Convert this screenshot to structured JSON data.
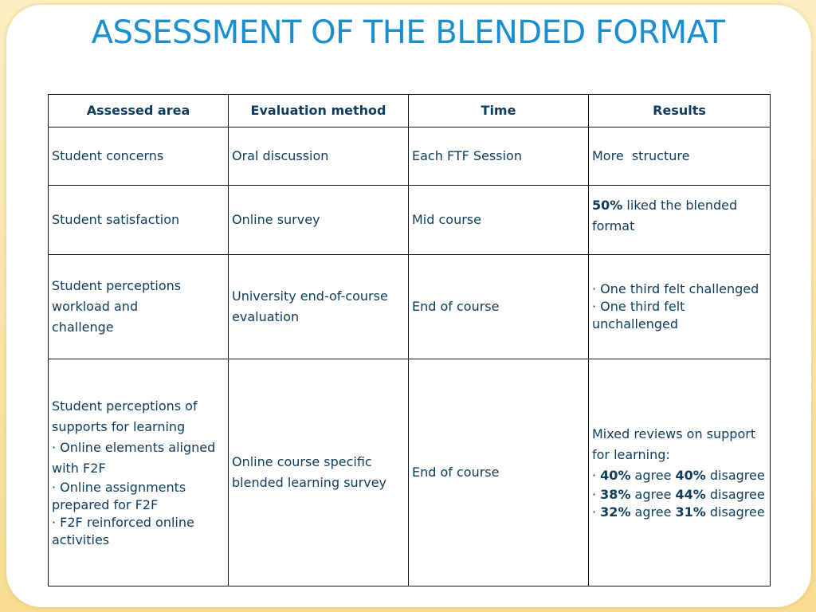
{
  "title": "ASSESSMENT OF THE BLENDED FORMAT",
  "headers": [
    "Assessed area",
    "Evaluation method",
    "Time",
    "Results"
  ],
  "rows": [
    {
      "area": "Student concerns",
      "method": "Oral discussion",
      "time": "Each FTF Session",
      "result": "More  structure"
    },
    {
      "area": "Student satisfaction",
      "method": "Online survey",
      "time": "Mid course",
      "result_pct": "50%",
      "result_text": " liked the blended format"
    },
    {
      "area_l1": "Student perceptions",
      "area_l2": "workload and",
      "area_l3": "challenge",
      "method_l1": "University end-of-course",
      "method_l2": "evaluation",
      "time": "End of course",
      "result_b1": "· One third felt challenged",
      "result_b2": "· One third felt unchallenged"
    },
    {
      "area_l1": "Student perceptions of supports for learning",
      "area_b1": "· Online elements aligned with F2F",
      "area_b2": "· Online assignments prepared for F2F",
      "area_b3": "· F2F reinforced online activities",
      "method_l1": "Online course specific",
      "method_l2": "blended learning survey",
      "time": "End of course",
      "result_intro": "Mixed reviews on support for learning:",
      "result_items": [
        {
          "dot": "· ",
          "agree": "40%",
          "mid": " agree ",
          "disagree": "40%",
          "tail": " disagree"
        },
        {
          "dot": "· ",
          "agree": "38%",
          "mid": " agree ",
          "disagree": "44%",
          "tail": " disagree"
        },
        {
          "dot": "· ",
          "agree": "32%",
          "mid": " agree ",
          "disagree": "31%",
          "tail": " disagree"
        }
      ]
    }
  ]
}
